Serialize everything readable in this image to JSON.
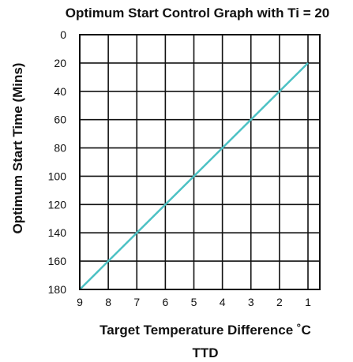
{
  "chart_data": {
    "type": "line",
    "title": "Optimum Start Control Graph with Ti = 20",
    "xlabel": "Target Temperature Difference ˚C",
    "xlabel2": "TTD",
    "ylabel": "Optimum Start Time (Mins)",
    "x_ticks": [
      "9",
      "8",
      "7",
      "6",
      "5",
      "4",
      "3",
      "2",
      "1"
    ],
    "y_ticks": [
      "0",
      "20",
      "40",
      "60",
      "80",
      "100",
      "120",
      "140",
      "160",
      "180"
    ],
    "xlim": [
      9,
      1
    ],
    "ylim": [
      0,
      180
    ],
    "y_inverted": true,
    "grid": true,
    "series": [
      {
        "x": [
          9,
          1
        ],
        "y": [
          180,
          20
        ],
        "color": "#4cc1c4"
      }
    ]
  }
}
